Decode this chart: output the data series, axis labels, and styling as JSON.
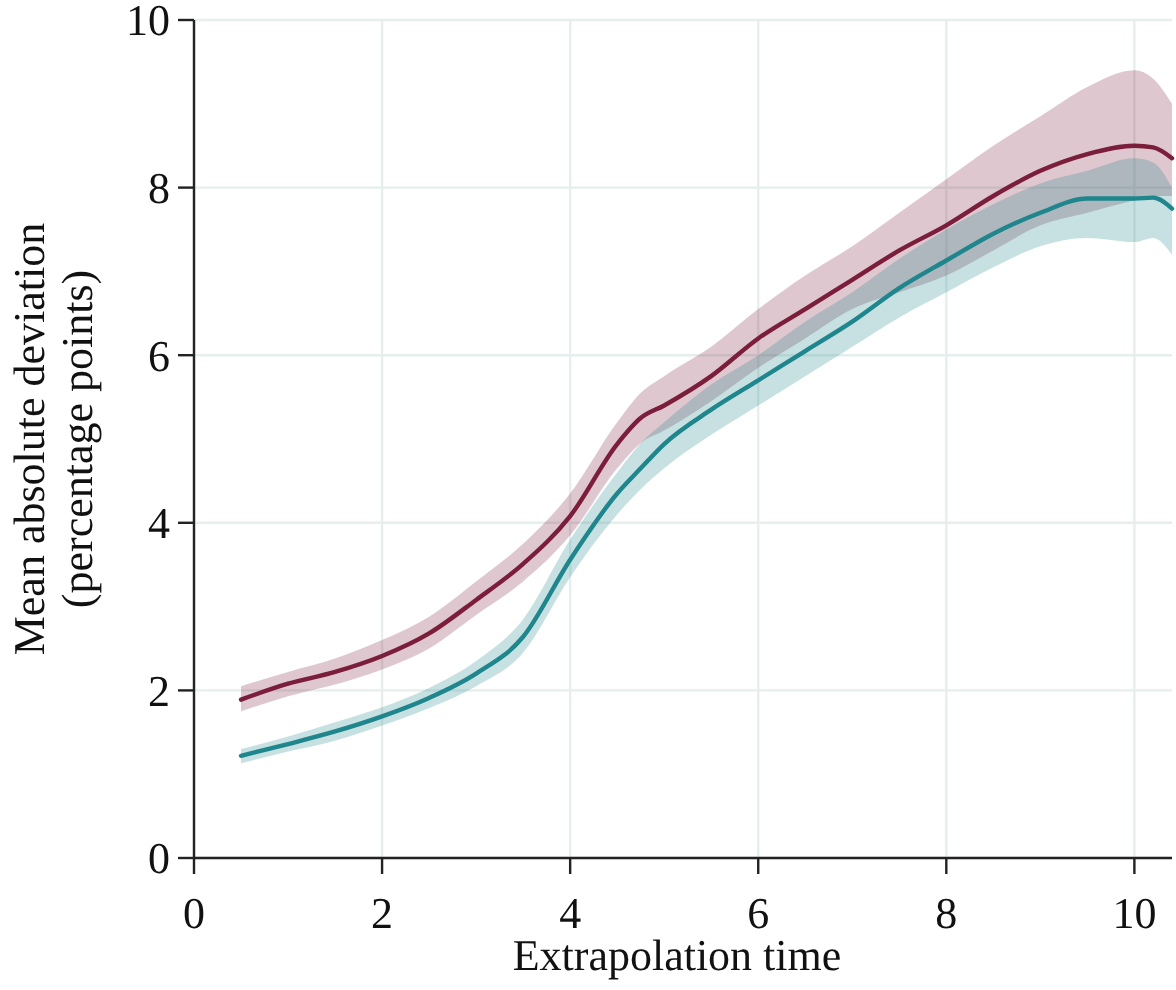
{
  "chart_data": {
    "type": "line",
    "xlabel": "Extrapolation time",
    "ylabel": "Mean absolute deviation\n(percentage points)",
    "x": [
      0.5,
      1,
      1.5,
      2,
      2.5,
      3,
      3.5,
      4,
      4.5,
      4.75,
      5,
      5.5,
      6,
      6.5,
      7,
      7.5,
      8,
      8.5,
      9,
      9.5,
      10,
      10.2,
      10.4
    ],
    "series": [
      {
        "color": "#7b1e3c",
        "values": [
          1.89,
          2.08,
          2.22,
          2.41,
          2.68,
          3.08,
          3.51,
          4.08,
          4.94,
          5.25,
          5.4,
          5.75,
          6.2,
          6.55,
          6.9,
          7.25,
          7.55,
          7.9,
          8.2,
          8.4,
          8.5,
          8.48,
          8.35
        ],
        "lower": [
          1.75,
          1.93,
          2.07,
          2.25,
          2.5,
          2.9,
          3.3,
          3.85,
          4.65,
          4.95,
          5.1,
          5.45,
          5.85,
          6.2,
          6.55,
          6.75,
          6.95,
          7.25,
          7.55,
          7.7,
          7.85,
          7.9,
          7.9
        ],
        "upper": [
          2.05,
          2.22,
          2.38,
          2.6,
          2.88,
          3.3,
          3.75,
          4.35,
          5.2,
          5.55,
          5.75,
          6.1,
          6.55,
          6.95,
          7.3,
          7.7,
          8.1,
          8.5,
          8.85,
          9.2,
          9.4,
          9.3,
          9.0
        ]
      },
      {
        "color": "#1e868c",
        "values": [
          1.22,
          1.36,
          1.51,
          1.69,
          1.91,
          2.2,
          2.64,
          3.56,
          4.35,
          4.65,
          4.94,
          5.35,
          5.7,
          6.05,
          6.4,
          6.8,
          7.13,
          7.45,
          7.7,
          7.87,
          7.87,
          7.88,
          7.75
        ],
        "lower": [
          1.13,
          1.27,
          1.4,
          1.58,
          1.79,
          2.05,
          2.45,
          3.35,
          4.1,
          4.4,
          4.65,
          5.05,
          5.4,
          5.75,
          6.1,
          6.45,
          6.75,
          7.05,
          7.3,
          7.4,
          7.35,
          7.4,
          7.2
        ],
        "upper": [
          1.3,
          1.45,
          1.62,
          1.8,
          2.03,
          2.35,
          2.85,
          3.8,
          4.6,
          4.95,
          5.2,
          5.65,
          6.0,
          6.4,
          6.75,
          7.15,
          7.5,
          7.8,
          8.05,
          8.2,
          8.35,
          8.3,
          8.0
        ]
      }
    ],
    "xlim": [
      0,
      10.4
    ],
    "xticks": [
      0,
      2,
      4,
      6,
      8,
      10
    ],
    "ylim": [
      0,
      10
    ],
    "yticks": [
      0,
      2,
      4,
      6,
      8,
      10
    ],
    "grid": true,
    "marker": "none",
    "line_style": "solid"
  }
}
